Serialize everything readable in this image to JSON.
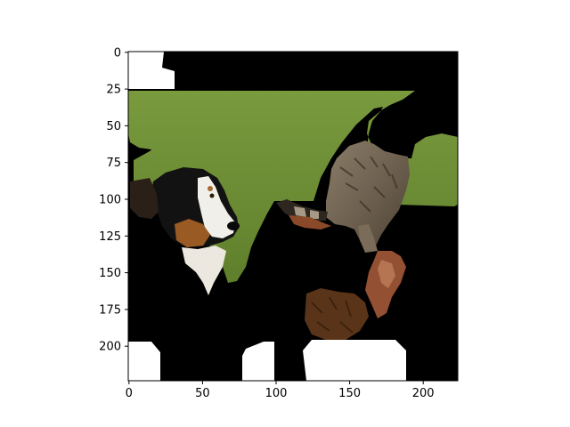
{
  "chart_data": {
    "type": "image",
    "title": "",
    "xlabel": "",
    "ylabel": "",
    "xlim": [
      0,
      224
    ],
    "ylim": [
      224,
      0
    ],
    "xticks": [
      0,
      50,
      100,
      150,
      200
    ],
    "yticks": [
      0,
      25,
      50,
      75,
      100,
      125,
      150,
      175,
      200
    ],
    "xtick_labels": [
      "0",
      "50",
      "100",
      "150",
      "200"
    ],
    "ytick_labels": [
      "0",
      "25",
      "50",
      "75",
      "100",
      "125",
      "150",
      "175",
      "200"
    ],
    "grid": false,
    "image_content": {
      "subjects": [
        "dog",
        "cat"
      ],
      "background_colors": {
        "mask": "#000000",
        "grass": "#6f8f35",
        "unmasked_white": "#ffffff",
        "leaf": "#8a4a2a"
      }
    }
  }
}
